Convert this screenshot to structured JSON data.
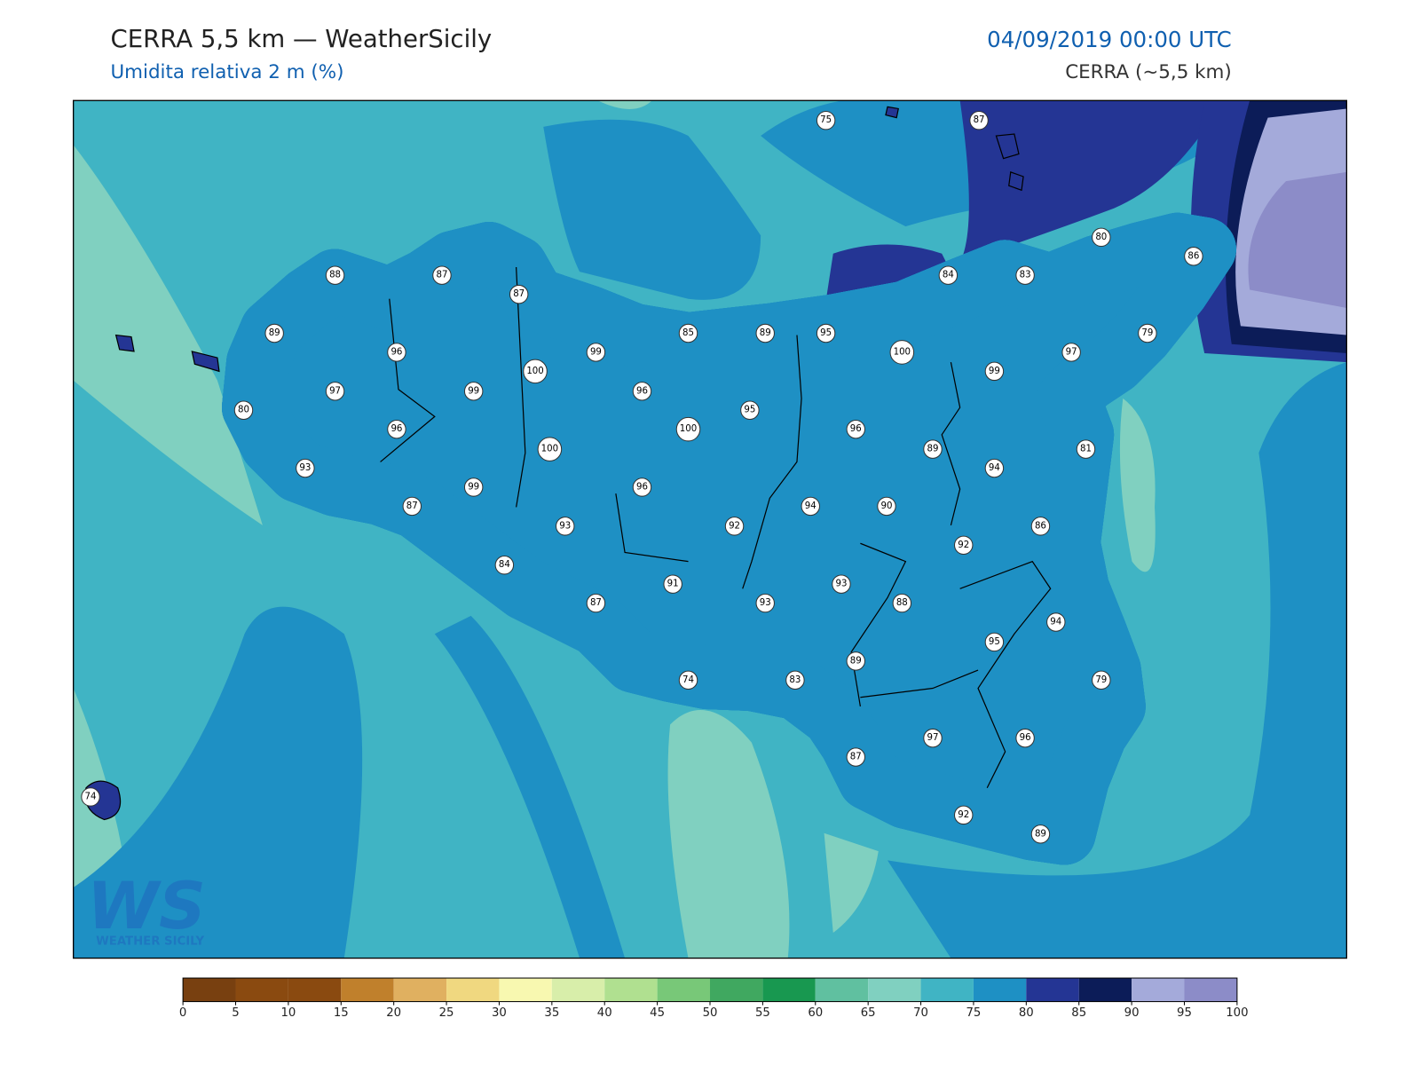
{
  "header": {
    "title": "CERRA 5,5 km — WeatherSicily",
    "subtitle": "Umidita relativa 2 m (%)",
    "datetime": "04/09/2019 00:00 UTC",
    "model": "CERRA (~5,5 km)"
  },
  "stations": [
    75,
    87,
    80,
    86,
    88,
    87,
    87,
    84,
    83,
    89,
    96,
    99,
    100,
    85,
    89,
    95,
    100,
    97,
    99,
    79,
    97,
    99,
    96,
    95,
    100,
    96,
    80,
    96,
    100,
    89,
    81,
    93,
    94,
    99,
    96,
    94,
    90,
    87,
    93,
    92,
    86,
    92,
    84,
    91,
    93,
    87,
    93,
    88,
    94,
    95,
    89,
    74,
    83,
    79,
    97,
    96,
    87,
    74,
    92,
    89
  ],
  "colorbar": {
    "range": [
      0,
      100
    ],
    "ticks": [
      0,
      5,
      10,
      15,
      20,
      25,
      30,
      35,
      40,
      45,
      50,
      55,
      60,
      65,
      70,
      75,
      80,
      85,
      90,
      95,
      100
    ],
    "colors": [
      "#784010",
      "#8a4a10",
      "#8a4a10",
      "#c0802c",
      "#e0b060",
      "#f0d880",
      "#f8f8b0",
      "#d8eeaa",
      "#b0e090",
      "#78c878",
      "#40a860",
      "#189850",
      "#60c0a0",
      "#80d0c0",
      "#40b4c4",
      "#1e90c4",
      "#243594",
      "#0c1c58",
      "#a4aada",
      "#8c8cc8"
    ]
  },
  "logo": {
    "mark": "WS",
    "text": "WEATHER SICILY"
  }
}
